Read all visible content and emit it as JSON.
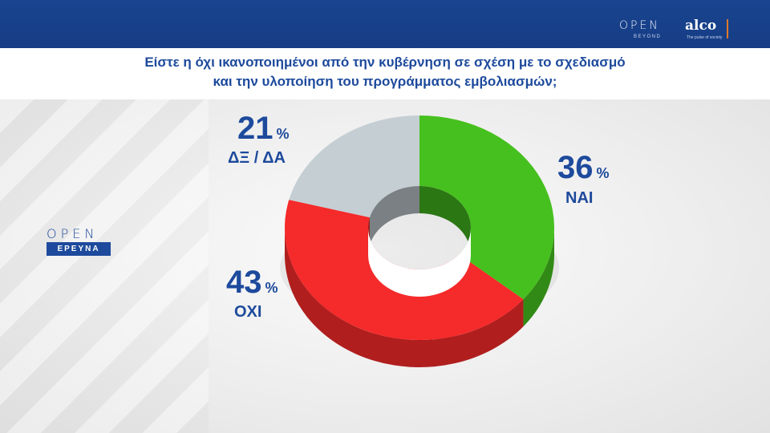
{
  "header": {
    "logo_open": "OPEN",
    "logo_beyond": "BEYOND",
    "logo_alco": "alco",
    "logo_alco_tagline": "The pulse of society"
  },
  "title": {
    "line1": "Είστε η όχι ικανοποιημένοι από την κυβέρνηση σε σχέση με το σχεδιασμό",
    "line2": "και την υλοποίηση του προγράμματος εμβολιασμών;"
  },
  "brand": {
    "open": "OPEN",
    "erevna": "ΕΡΕΥΝΑ"
  },
  "colors": {
    "header_blue": "#1a4490",
    "text_blue": "#1d4a9c",
    "yes_green": "#46c01e",
    "no_red": "#f52a2a",
    "dk_grey": "#c4ced3"
  },
  "chart_data": {
    "type": "pie",
    "style": "3d-donut",
    "title": "Είστε η όχι ικανοποιημένοι από την κυβέρνηση σε σχέση με το σχεδιασμό και την υλοποίηση του προγράμματος εμβολιασμών;",
    "slices": [
      {
        "label": "ΝΑΙ",
        "value": 36,
        "value_text": "36",
        "unit": "%",
        "color": "#46c01e"
      },
      {
        "label": "ΟΧΙ",
        "value": 43,
        "value_text": "43",
        "unit": "%",
        "color": "#f52a2a"
      },
      {
        "label": "ΔΞ / ΔΑ",
        "value": 21,
        "value_text": "21",
        "unit": "%",
        "color": "#c4ced3"
      }
    ]
  }
}
